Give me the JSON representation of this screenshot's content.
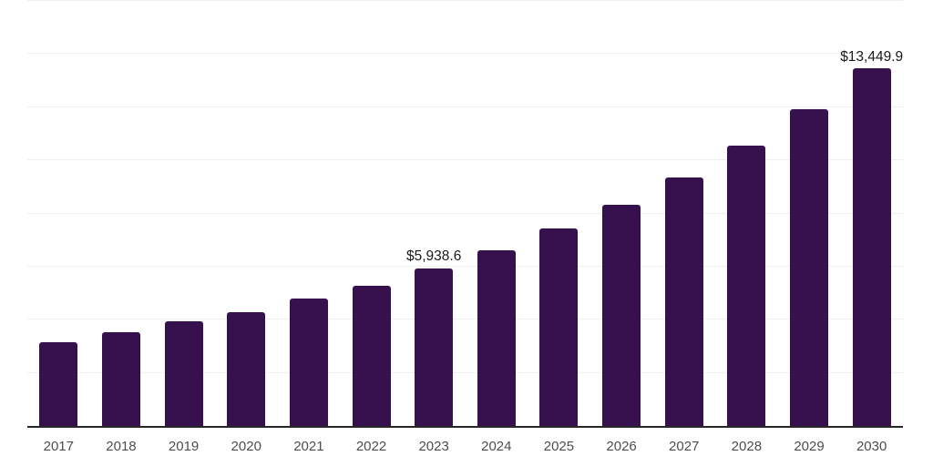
{
  "chart": {
    "background_color": "#ffffff",
    "bar_color": "#36114D",
    "axis_line_color": "#262626",
    "gridline_color": "#efefef",
    "tick_label_color": "#4d4d4d",
    "data_label_color": "#1a1a1a"
  },
  "chart_data": {
    "type": "bar",
    "title": "",
    "xlabel": "",
    "ylabel": "",
    "categories": [
      "2017",
      "2018",
      "2019",
      "2020",
      "2021",
      "2022",
      "2023",
      "2024",
      "2025",
      "2026",
      "2027",
      "2028",
      "2029",
      "2030"
    ],
    "values": [
      3150,
      3520,
      3950,
      4270,
      4790,
      5280,
      5938.6,
      6620,
      7420,
      8330,
      9360,
      10550,
      11915,
      13449.9
    ],
    "data_labels": {
      "2023": "$5,938.6",
      "2030": "$13,449.9"
    },
    "ylim": [
      0,
      16000
    ],
    "gridline_interval": 2000,
    "grid": true,
    "legend": false,
    "y_axis_tick_labels_visible": false
  }
}
